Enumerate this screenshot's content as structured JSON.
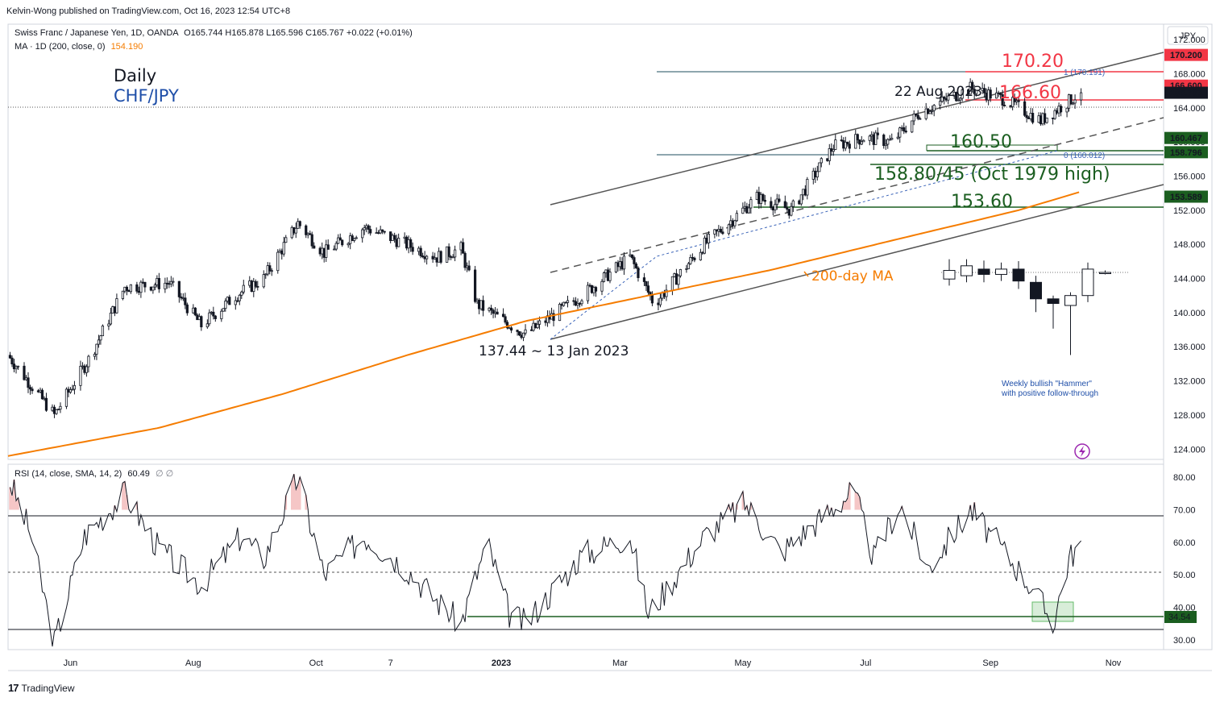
{
  "publisher": "Kelvin-Wong published on TradingView.com, Oct 16, 2023 12:54 UTC+8",
  "symbol_line": {
    "name": "Swiss Franc / Japanese Yen, 1D, OANDA",
    "ohlc": "O165.744  H165.878  L165.596  C165.767  +0.022 (+0.01%)"
  },
  "ma_line": {
    "label": "MA · 1D (200, close, 0)",
    "value": "154.190"
  },
  "rsi_line": {
    "label": "RSI (14, close, SMA, 14, 2)",
    "value": "60.49",
    "extra": "∅  ∅"
  },
  "footer_brand": "TradingView",
  "chart_data": {
    "type": "candlestick",
    "title": "Daily",
    "subtitle": "CHF/JPY",
    "currency": "JPY",
    "x_ticks": [
      "Jun",
      "Aug",
      "Oct",
      "7",
      "2023",
      "Mar",
      "May",
      "Jul",
      "Sep",
      "Nov"
    ],
    "price_ticks": [
      "172.000",
      "168.000",
      "164.000",
      "160.000",
      "156.000",
      "152.000",
      "148.000",
      "144.000",
      "140.000",
      "136.000",
      "132.000",
      "128.000",
      "124.000"
    ],
    "price_range": [
      122.8,
      173.8
    ],
    "rsi_ticks": [
      "80.00",
      "70.00",
      "60.00",
      "50.00",
      "40.00",
      "30.00"
    ],
    "rsi_range": [
      27,
      84
    ],
    "price_key_points": [
      [
        "2022-05-01",
        135.0
      ],
      [
        "2022-05-24",
        128.0
      ],
      [
        "2022-06-10",
        134.5
      ],
      [
        "2022-06-28",
        143.0
      ],
      [
        "2022-07-20",
        143.5
      ],
      [
        "2022-08-05",
        138.5
      ],
      [
        "2022-08-22",
        142.0
      ],
      [
        "2022-09-05",
        144.0
      ],
      [
        "2022-09-22",
        150.5
      ],
      [
        "2022-10-05",
        147.0
      ],
      [
        "2022-10-25",
        150.0
      ],
      [
        "2022-11-10",
        148.5
      ],
      [
        "2022-11-30",
        146.5
      ],
      [
        "2022-12-12",
        147.5
      ],
      [
        "2022-12-20",
        141.0
      ],
      [
        "2023-01-13",
        137.44
      ],
      [
        "2023-02-10",
        142.0
      ],
      [
        "2023-03-06",
        146.5
      ],
      [
        "2023-03-18",
        141.0
      ],
      [
        "2023-04-12",
        148.0
      ],
      [
        "2023-05-08",
        153.5
      ],
      [
        "2023-05-25",
        152.0
      ],
      [
        "2023-06-15",
        159.5
      ],
      [
        "2023-06-30",
        160.5
      ],
      [
        "2023-07-14",
        160.0
      ],
      [
        "2023-07-28",
        163.5
      ],
      [
        "2023-08-22",
        166.3
      ],
      [
        "2023-09-08",
        165.0
      ],
      [
        "2023-09-26",
        162.5
      ],
      [
        "2023-10-16",
        165.767
      ]
    ],
    "ma200_key_points": [
      [
        "2022-05-01",
        123.2
      ],
      [
        "2022-07-15",
        126.5
      ],
      [
        "2022-09-15",
        130.5
      ],
      [
        "2022-11-15",
        135.0
      ],
      [
        "2023-01-13",
        139.0
      ],
      [
        "2023-03-15",
        142.0
      ],
      [
        "2023-05-15",
        145.0
      ],
      [
        "2023-07-15",
        148.5
      ],
      [
        "2023-09-15",
        152.0
      ],
      [
        "2023-10-16",
        154.19
      ]
    ],
    "rsi_key_points": [
      [
        "2022-05-01",
        80
      ],
      [
        "2022-05-12",
        63
      ],
      [
        "2022-05-24",
        29
      ],
      [
        "2022-06-08",
        62
      ],
      [
        "2022-06-28",
        75
      ],
      [
        "2022-07-15",
        58
      ],
      [
        "2022-08-05",
        47
      ],
      [
        "2022-08-25",
        62
      ],
      [
        "2022-09-05",
        55
      ],
      [
        "2022-09-22",
        80
      ],
      [
        "2022-10-05",
        50
      ],
      [
        "2022-10-25",
        62
      ],
      [
        "2022-11-15",
        52
      ],
      [
        "2022-11-30",
        42
      ],
      [
        "2022-12-12",
        35
      ],
      [
        "2022-12-25",
        60
      ],
      [
        "2023-01-05",
        38
      ],
      [
        "2023-01-13",
        35
      ],
      [
        "2023-02-10",
        56
      ],
      [
        "2023-03-06",
        62
      ],
      [
        "2023-03-15",
        38
      ],
      [
        "2023-04-12",
        62
      ],
      [
        "2023-05-02",
        72
      ],
      [
        "2023-05-20",
        57
      ],
      [
        "2023-06-10",
        68
      ],
      [
        "2023-06-25",
        76
      ],
      [
        "2023-07-05",
        55
      ],
      [
        "2023-07-18",
        72
      ],
      [
        "2023-08-01",
        52
      ],
      [
        "2023-08-22",
        70
      ],
      [
        "2023-09-08",
        57
      ],
      [
        "2023-09-22",
        46
      ],
      [
        "2023-10-02",
        35
      ],
      [
        "2023-10-10",
        55
      ],
      [
        "2023-10-16",
        60.49
      ]
    ],
    "current_price": "165.767",
    "level_labels": [
      {
        "value": "170.200",
        "color": "#f23645"
      },
      {
        "value": "166.600",
        "color": "#f23645"
      },
      {
        "value": "165.767",
        "color": "#131722"
      },
      {
        "value": "160.467",
        "color": "#1b5e20"
      },
      {
        "value": "158.796",
        "color": "#1b5e20"
      },
      {
        "value": "153.589",
        "color": "#1b5e20"
      }
    ],
    "rsi_level_label": "34.54",
    "annotations": {
      "r2": "170.20",
      "r1": "166.60",
      "s1": "160.50",
      "s2": "158.80/45 (Oct 1979 high)",
      "s3": "153.60",
      "peak": "22 Aug 2023",
      "low": "137.44 ~ 13 Jan 2023",
      "ma": "200-day MA",
      "fib_top": "1 (170.191)",
      "fib_bottom": "0 (160.012)",
      "hammer_line1": "Weekly bullish \"Hammer\"",
      "hammer_line2": "with positive follow-through"
    },
    "weekly_inset": [
      {
        "o": 144.5,
        "h": 147.5,
        "l": 143.5,
        "c": 145.8
      },
      {
        "o": 145.0,
        "h": 147.5,
        "l": 144.0,
        "c": 146.5
      },
      {
        "o": 146.0,
        "h": 147.3,
        "l": 144.0,
        "c": 145.2
      },
      {
        "o": 145.2,
        "h": 147.0,
        "l": 144.2,
        "c": 146.0
      },
      {
        "o": 146.0,
        "h": 147.2,
        "l": 143.0,
        "c": 144.2
      },
      {
        "o": 144.0,
        "h": 145.0,
        "l": 139.5,
        "c": 141.5
      },
      {
        "o": 141.5,
        "h": 142.0,
        "l": 137.0,
        "c": 140.8
      },
      {
        "o": 140.5,
        "h": 142.5,
        "l": 133.0,
        "c": 142.0
      },
      {
        "o": 142.0,
        "h": 147.0,
        "l": 141.0,
        "c": 146.0
      },
      {
        "o": 145.5,
        "h": 145.8,
        "l": 145.2,
        "c": 145.5
      }
    ],
    "colors": {
      "candle": "#131722",
      "ma200": "#f57c00",
      "resistance": "#f23645",
      "support": "#1b5e20",
      "title_pair": "#1e4ea8",
      "hammer_text": "#1e4ea8",
      "channel": "#555555",
      "rsi_line": "#131722",
      "rsi_overbought_fill": "#f5c6c6",
      "rsi_box": "#c8e6c9"
    }
  }
}
